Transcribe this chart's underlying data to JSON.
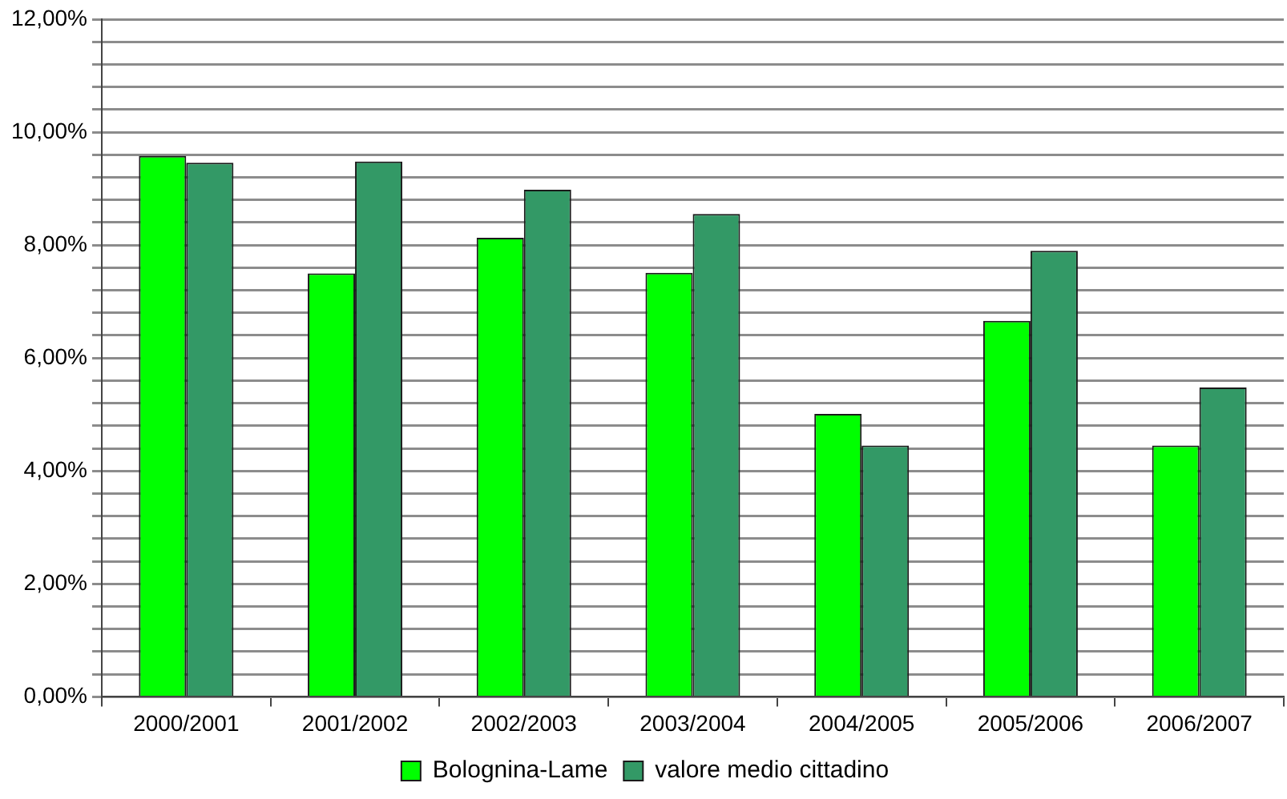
{
  "chart_data": {
    "type": "bar",
    "categories": [
      "2000/2001",
      "2001/2002",
      "2002/2003",
      "2003/2004",
      "2004/2005",
      "2005/2006",
      "2006/2007"
    ],
    "series": [
      {
        "name": "Bolognina-Lame",
        "color": "#00ff00",
        "values": [
          9.58,
          7.5,
          8.13,
          7.51,
          5.01,
          6.66,
          4.45
        ]
      },
      {
        "name": "valore medio cittadino",
        "color": "#339966",
        "values": [
          9.46,
          9.48,
          8.98,
          8.55,
          4.45,
          7.9,
          5.48
        ]
      }
    ],
    "ylim": [
      0,
      12
    ],
    "yticks": [
      {
        "value": 0,
        "label": "0,00%"
      },
      {
        "value": 0.4,
        "label": null
      },
      {
        "value": 0.8,
        "label": null
      },
      {
        "value": 1.2,
        "label": null
      },
      {
        "value": 1.6,
        "label": null
      },
      {
        "value": 2,
        "label": "2,00%"
      },
      {
        "value": 2.4,
        "label": null
      },
      {
        "value": 2.8,
        "label": null
      },
      {
        "value": 3.2,
        "label": null
      },
      {
        "value": 3.6,
        "label": null
      },
      {
        "value": 4,
        "label": "4,00%"
      },
      {
        "value": 4.4,
        "label": null
      },
      {
        "value": 4.8,
        "label": null
      },
      {
        "value": 5.2,
        "label": null
      },
      {
        "value": 5.6,
        "label": null
      },
      {
        "value": 6,
        "label": "6,00%"
      },
      {
        "value": 6.4,
        "label": null
      },
      {
        "value": 6.8,
        "label": null
      },
      {
        "value": 7.2,
        "label": null
      },
      {
        "value": 7.6,
        "label": null
      },
      {
        "value": 8,
        "label": "8,00%"
      },
      {
        "value": 8.4,
        "label": null
      },
      {
        "value": 8.8,
        "label": null
      },
      {
        "value": 9.2,
        "label": null
      },
      {
        "value": 9.6,
        "label": null
      },
      {
        "value": 10,
        "label": "10,00%"
      },
      {
        "value": 10.4,
        "label": null
      },
      {
        "value": 10.8,
        "label": null
      },
      {
        "value": 11.2,
        "label": null
      },
      {
        "value": 11.6,
        "label": null
      },
      {
        "value": 12,
        "label": "12,00%"
      }
    ],
    "grid": "y",
    "legend": "bottom"
  }
}
